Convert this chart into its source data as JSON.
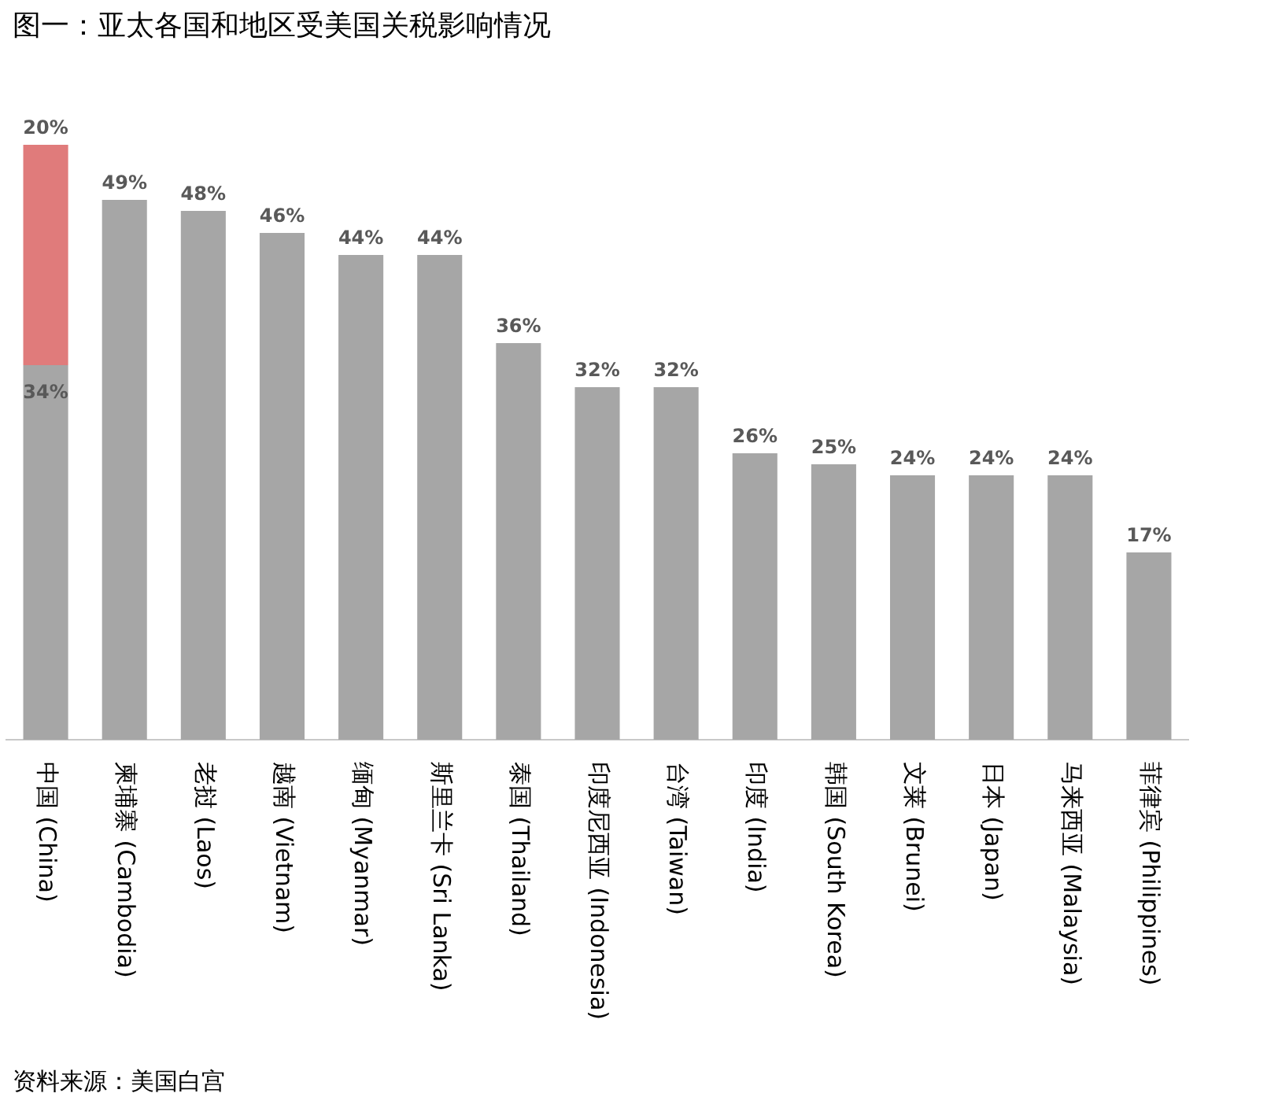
{
  "chart_data": {
    "type": "bar",
    "title": "图一：亚太各国和地区受美国关税影响情况",
    "stacked": true,
    "tick_labels": "x",
    "grid": false,
    "legend": false,
    "categories": [
      "中国 (China)",
      "柬埔寨 (Cambodia)",
      "老挝 (Laos)",
      "越南 (Vietnam)",
      "缅甸 (Myanmar)",
      "斯里兰卡 (Sri Lanka)",
      "泰国 (Thailand)",
      "印度尼西亚 (Indonesia)",
      "台湾 (Taiwan)",
      "印度 (India)",
      "韩国 (South Korea)",
      "文莱 (Brunei)",
      "日本 (Japan)",
      "马来西亚 (Malaysia)",
      "菲律宾 (Philippines)"
    ],
    "series": [
      {
        "color": "#a6a6a6",
        "values": [
          34,
          49,
          48,
          46,
          44,
          44,
          36,
          32,
          32,
          26,
          25,
          24,
          24,
          24,
          17
        ],
        "value_labels": [
          "34%",
          "49%",
          "48%",
          "46%",
          "44%",
          "44%",
          "36%",
          "32%",
          "32%",
          "26%",
          "25%",
          "24%",
          "24%",
          "24%",
          "17%"
        ]
      },
      {
        "color": "#e07b7b",
        "values": [
          20,
          null,
          null,
          null,
          null,
          null,
          null,
          null,
          null,
          null,
          null,
          null,
          null,
          null,
          null
        ],
        "value_labels": [
          "20%",
          null,
          null,
          null,
          null,
          null,
          null,
          null,
          null,
          null,
          null,
          null,
          null,
          null,
          null
        ]
      }
    ],
    "annotations": [
      "资料来源：美国白宫"
    ]
  }
}
